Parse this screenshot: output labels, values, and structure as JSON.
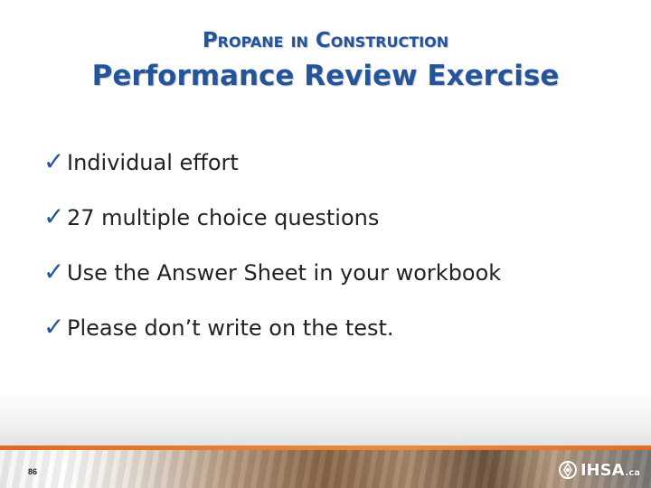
{
  "slide": {
    "supertitle": "Propane in Construction",
    "title": "Performance Review Exercise",
    "bullet_icon": "checkmark-icon",
    "bullets": [
      "Individual effort",
      "27 multiple choice questions",
      "Use the Answer Sheet in your workbook",
      "Please don’t write on the test."
    ],
    "colors": {
      "title": "#24549a",
      "accent_line": "#e06a1e",
      "text": "#222222"
    }
  },
  "footer": {
    "page_number": "86",
    "logo_text": "IHSA",
    "logo_suffix": ".ca"
  }
}
